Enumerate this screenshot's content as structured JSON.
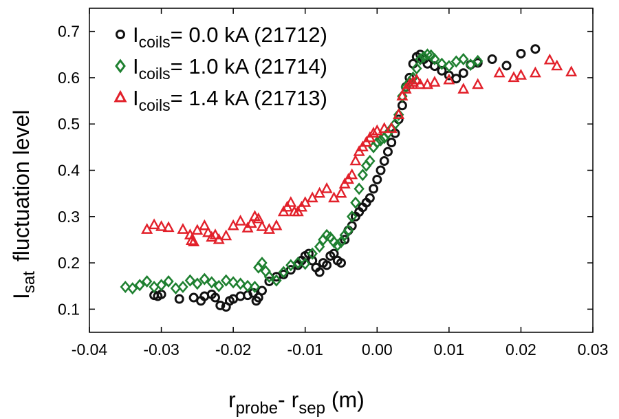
{
  "chart_data": {
    "type": "scatter",
    "xlabel": {
      "main": "r",
      "sub1": "probe",
      "sep": "- r",
      "sub2": "sep",
      "unit": " (m)"
    },
    "ylabel": {
      "main": "I",
      "sub": "sat",
      "rest": "fluctuation level"
    },
    "xlim": [
      -0.04,
      0.03
    ],
    "ylim": [
      0.05,
      0.75
    ],
    "xticks": [
      -0.04,
      -0.03,
      -0.02,
      -0.01,
      0.0,
      0.01,
      0.02,
      0.03
    ],
    "xtick_labels": [
      "-0.04",
      "-0.03",
      "-0.02",
      "-0.01",
      "0.00",
      "0.01",
      "0.02",
      "0.03"
    ],
    "yticks": [
      0.1,
      0.2,
      0.3,
      0.4,
      0.5,
      0.6,
      0.7
    ],
    "ytick_labels": [
      "0.1",
      "0.2",
      "0.3",
      "0.4",
      "0.5",
      "0.6",
      "0.7"
    ],
    "grid": false,
    "legend_position": "top-left",
    "series": [
      {
        "name": "0.0 kA (21712)",
        "label_main": "I",
        "label_sub": "coils",
        "label_rest": "= 0.0 kA (21712)",
        "marker": "circle",
        "color": "#111111",
        "points": [
          [
            -0.031,
            0.13
          ],
          [
            -0.0305,
            0.128
          ],
          [
            -0.03,
            0.132
          ],
          [
            -0.0275,
            0.122
          ],
          [
            -0.0255,
            0.125
          ],
          [
            -0.0245,
            0.118
          ],
          [
            -0.024,
            0.128
          ],
          [
            -0.023,
            0.132
          ],
          [
            -0.0225,
            0.125
          ],
          [
            -0.0218,
            0.108
          ],
          [
            -0.021,
            0.105
          ],
          [
            -0.0205,
            0.118
          ],
          [
            -0.02,
            0.122
          ],
          [
            -0.019,
            0.128
          ],
          [
            -0.018,
            0.13
          ],
          [
            -0.0172,
            0.135
          ],
          [
            -0.0168,
            0.118
          ],
          [
            -0.0165,
            0.125
          ],
          [
            -0.016,
            0.14
          ],
          [
            -0.015,
            0.16
          ],
          [
            -0.014,
            0.17
          ],
          [
            -0.013,
            0.175
          ],
          [
            -0.012,
            0.185
          ],
          [
            -0.011,
            0.195
          ],
          [
            -0.0105,
            0.205
          ],
          [
            -0.01,
            0.215
          ],
          [
            -0.0095,
            0.22
          ],
          [
            -0.009,
            0.205
          ],
          [
            -0.0085,
            0.19
          ],
          [
            -0.008,
            0.18
          ],
          [
            -0.0075,
            0.2
          ],
          [
            -0.007,
            0.195
          ],
          [
            -0.0065,
            0.215
          ],
          [
            -0.006,
            0.22
          ],
          [
            -0.0055,
            0.205
          ],
          [
            -0.005,
            0.2
          ],
          [
            -0.0045,
            0.25
          ],
          [
            -0.004,
            0.27
          ],
          [
            -0.0035,
            0.28
          ],
          [
            -0.003,
            0.3
          ],
          [
            -0.0025,
            0.31
          ],
          [
            -0.002,
            0.32
          ],
          [
            -0.0015,
            0.33
          ],
          [
            -0.001,
            0.34
          ],
          [
            -0.0005,
            0.36
          ],
          [
            0.0,
            0.38
          ],
          [
            0.0005,
            0.4
          ],
          [
            0.001,
            0.42
          ],
          [
            0.0015,
            0.44
          ],
          [
            0.002,
            0.46
          ],
          [
            0.0025,
            0.48
          ],
          [
            0.003,
            0.51
          ],
          [
            0.0035,
            0.54
          ],
          [
            0.004,
            0.58
          ],
          [
            0.0045,
            0.6
          ],
          [
            0.005,
            0.63
          ],
          [
            0.0055,
            0.645
          ],
          [
            0.006,
            0.65
          ],
          [
            0.0065,
            0.64
          ],
          [
            0.007,
            0.63
          ],
          [
            0.008,
            0.625
          ],
          [
            0.009,
            0.615
          ],
          [
            0.01,
            0.605
          ],
          [
            0.011,
            0.598
          ],
          [
            0.012,
            0.61
          ],
          [
            0.013,
            0.628
          ],
          [
            0.014,
            0.632
          ],
          [
            0.016,
            0.64
          ],
          [
            0.018,
            0.626
          ],
          [
            0.02,
            0.652
          ],
          [
            0.022,
            0.662
          ]
        ]
      },
      {
        "name": "1.0 kA (21714)",
        "label_main": "I",
        "label_sub": "coils",
        "label_rest": "= 1.0 kA (21714)",
        "marker": "diamond",
        "color": "#1e8030",
        "points": [
          [
            -0.035,
            0.148
          ],
          [
            -0.034,
            0.145
          ],
          [
            -0.033,
            0.152
          ],
          [
            -0.032,
            0.16
          ],
          [
            -0.031,
            0.148
          ],
          [
            -0.03,
            0.152
          ],
          [
            -0.029,
            0.16
          ],
          [
            -0.028,
            0.145
          ],
          [
            -0.027,
            0.148
          ],
          [
            -0.026,
            0.162
          ],
          [
            -0.025,
            0.155
          ],
          [
            -0.024,
            0.165
          ],
          [
            -0.023,
            0.158
          ],
          [
            -0.022,
            0.15
          ],
          [
            -0.021,
            0.162
          ],
          [
            -0.02,
            0.158
          ],
          [
            -0.019,
            0.155
          ],
          [
            -0.018,
            0.15
          ],
          [
            -0.017,
            0.148
          ],
          [
            -0.0165,
            0.19
          ],
          [
            -0.016,
            0.2
          ],
          [
            -0.0155,
            0.182
          ],
          [
            -0.015,
            0.17
          ],
          [
            -0.014,
            0.162
          ],
          [
            -0.013,
            0.18
          ],
          [
            -0.012,
            0.195
          ],
          [
            -0.011,
            0.2
          ],
          [
            -0.01,
            0.198
          ],
          [
            -0.009,
            0.22
          ],
          [
            -0.008,
            0.235
          ],
          [
            -0.0075,
            0.25
          ],
          [
            -0.007,
            0.26
          ],
          [
            -0.0065,
            0.255
          ],
          [
            -0.006,
            0.245
          ],
          [
            -0.0055,
            0.238
          ],
          [
            -0.005,
            0.245
          ],
          [
            -0.0045,
            0.26
          ],
          [
            -0.004,
            0.27
          ],
          [
            -0.0035,
            0.3
          ],
          [
            -0.003,
            0.33
          ],
          [
            -0.0025,
            0.36
          ],
          [
            -0.002,
            0.39
          ],
          [
            -0.0015,
            0.41
          ],
          [
            -0.001,
            0.42
          ],
          [
            -0.0005,
            0.45
          ],
          [
            0.0,
            0.46
          ],
          [
            0.0005,
            0.465
          ],
          [
            0.001,
            0.47
          ],
          [
            0.0015,
            0.48
          ],
          [
            0.002,
            0.49
          ],
          [
            0.0025,
            0.5
          ],
          [
            0.003,
            0.52
          ],
          [
            0.0035,
            0.56
          ],
          [
            0.004,
            0.58
          ],
          [
            0.0045,
            0.59
          ],
          [
            0.005,
            0.6
          ],
          [
            0.0055,
            0.62
          ],
          [
            0.006,
            0.64
          ],
          [
            0.0065,
            0.645
          ],
          [
            0.007,
            0.65
          ],
          [
            0.0075,
            0.648
          ],
          [
            0.008,
            0.64
          ],
          [
            0.009,
            0.63
          ],
          [
            0.01,
            0.625
          ],
          [
            0.011,
            0.635
          ],
          [
            0.012,
            0.64
          ],
          [
            0.013,
            0.628
          ],
          [
            0.014,
            0.636
          ]
        ]
      },
      {
        "name": "1.4 kA (21713)",
        "label_main": "I",
        "label_sub": "coils",
        "label_rest": "= 1.4 kA (21713)",
        "marker": "triangle",
        "color": "#e2202a",
        "points": [
          [
            -0.032,
            0.272
          ],
          [
            -0.031,
            0.282
          ],
          [
            -0.03,
            0.278
          ],
          [
            -0.029,
            0.276
          ],
          [
            -0.027,
            0.272
          ],
          [
            -0.026,
            0.26
          ],
          [
            -0.0258,
            0.248
          ],
          [
            -0.0255,
            0.245
          ],
          [
            -0.025,
            0.27
          ],
          [
            -0.024,
            0.28
          ],
          [
            -0.0235,
            0.265
          ],
          [
            -0.023,
            0.255
          ],
          [
            -0.0225,
            0.26
          ],
          [
            -0.022,
            0.25
          ],
          [
            -0.021,
            0.258
          ],
          [
            -0.02,
            0.28
          ],
          [
            -0.019,
            0.29
          ],
          [
            -0.018,
            0.275
          ],
          [
            -0.0175,
            0.285
          ],
          [
            -0.017,
            0.3
          ],
          [
            -0.0165,
            0.295
          ],
          [
            -0.016,
            0.278
          ],
          [
            -0.015,
            0.272
          ],
          [
            -0.014,
            0.28
          ],
          [
            -0.013,
            0.31
          ],
          [
            -0.0125,
            0.32
          ],
          [
            -0.012,
            0.33
          ],
          [
            -0.0115,
            0.31
          ],
          [
            -0.011,
            0.31
          ],
          [
            -0.0105,
            0.32
          ],
          [
            -0.01,
            0.33
          ],
          [
            -0.009,
            0.34
          ],
          [
            -0.008,
            0.35
          ],
          [
            -0.007,
            0.36
          ],
          [
            -0.006,
            0.34
          ],
          [
            -0.005,
            0.35
          ],
          [
            -0.0045,
            0.37
          ],
          [
            -0.004,
            0.38
          ],
          [
            -0.0035,
            0.39
          ],
          [
            -0.003,
            0.42
          ],
          [
            -0.0025,
            0.44
          ],
          [
            -0.002,
            0.45
          ],
          [
            -0.0015,
            0.46
          ],
          [
            -0.001,
            0.47
          ],
          [
            -0.0005,
            0.48
          ],
          [
            0.0,
            0.485
          ],
          [
            0.001,
            0.49
          ],
          [
            0.002,
            0.49
          ],
          [
            0.003,
            0.52
          ],
          [
            0.0035,
            0.56
          ],
          [
            0.004,
            0.575
          ],
          [
            0.0045,
            0.585
          ],
          [
            0.005,
            0.59
          ],
          [
            0.0055,
            0.595
          ],
          [
            0.006,
            0.585
          ],
          [
            0.007,
            0.585
          ],
          [
            0.008,
            0.59
          ],
          [
            0.01,
            0.595
          ],
          [
            0.012,
            0.575
          ],
          [
            0.014,
            0.585
          ],
          [
            0.017,
            0.61
          ],
          [
            0.019,
            0.6
          ],
          [
            0.02,
            0.605
          ],
          [
            0.022,
            0.61
          ],
          [
            0.024,
            0.638
          ],
          [
            0.025,
            0.625
          ],
          [
            0.027,
            0.612
          ]
        ]
      }
    ]
  }
}
